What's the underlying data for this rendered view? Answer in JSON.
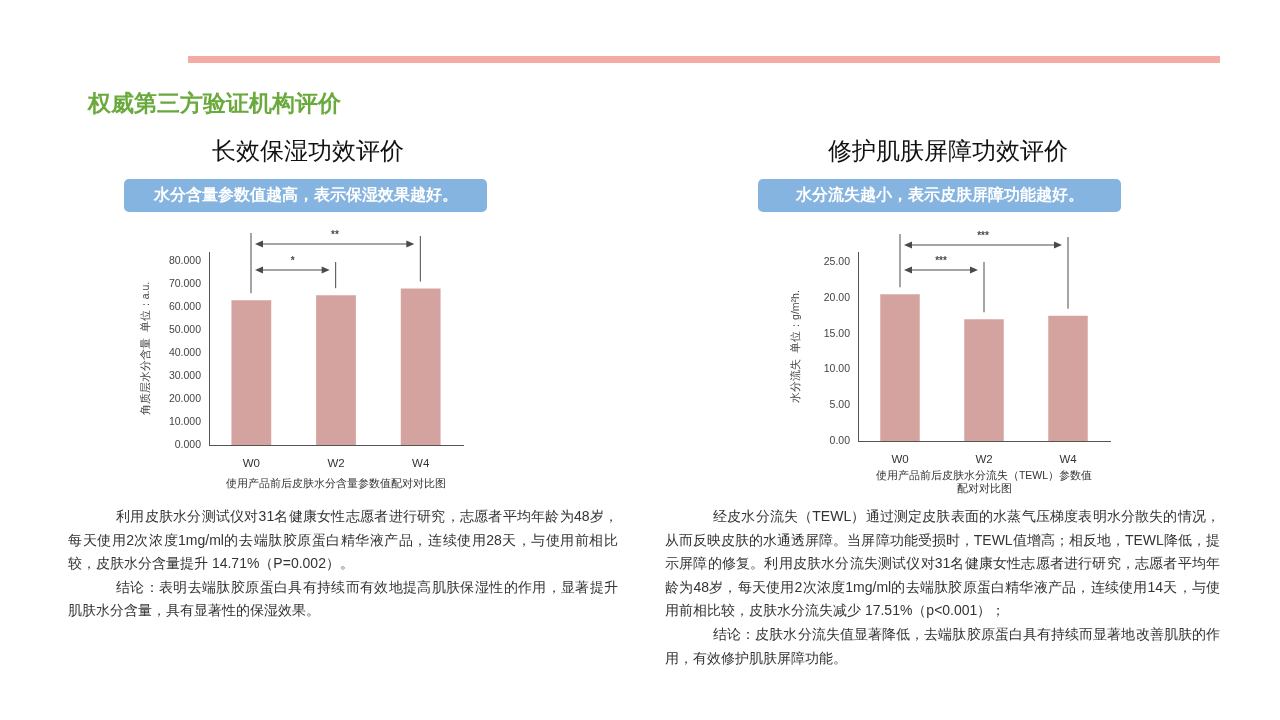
{
  "chart_data": [
    {
      "type": "bar",
      "title": "长效保湿功效评价",
      "subtitle": "水分含量参数值越高，表示保湿效果越好。",
      "xlabel": "使用产品前后皮肤水分含量参数值配对对比图",
      "ylabel": "角质层水分含量  单位：a.u.",
      "categories": [
        "W0",
        "W2",
        "W4"
      ],
      "values": [
        63.0,
        65.2,
        68.1
      ],
      "color": "#d4a39f",
      "ylim": [
        0,
        84
      ],
      "yticks": [
        {
          "value": 0,
          "label": "0.000"
        },
        {
          "value": 10,
          "label": "10.000"
        },
        {
          "value": 20,
          "label": "20.000"
        },
        {
          "value": 30,
          "label": "30.000"
        },
        {
          "value": 40,
          "label": "40.000"
        },
        {
          "value": 50,
          "label": "50.000"
        },
        {
          "value": 60,
          "label": "60.000"
        },
        {
          "value": 70,
          "label": "70.000"
        },
        {
          "value": 80,
          "label": "80.000"
        }
      ],
      "annotations": [
        "权威第三方验证机构评价",
        "*",
        "**",
        "利用皮肤水分测试仪对31名健康女性志愿者进行研究，志愿者平均年龄为48岁，每天使用2次浓度1mg/ml的去端肽胶原蛋白精华液产品，连续使用28天，与使用前相比较，皮肤水分含量提升 14.71%（P=0.002）。",
        "结论：表明去端肽胶原蛋白具有持续而有效地提高肌肤保湿性的作用，显著提升肌肤水分含量，具有显著性的保湿效果。"
      ]
    },
    {
      "type": "bar",
      "title": "修护肌肤屏障功效评价",
      "subtitle": "水分流失越小，表示皮肤屏障功能越好。",
      "xlabel": "使用产品前后皮肤水分流失（TEWL）参数值配对对比图",
      "ylabel": "水分流失  单位：g/m²h.",
      "categories": [
        "W0",
        "W2",
        "W4"
      ],
      "values": [
        20.5,
        17.0,
        17.5
      ],
      "color": "#d4a39f",
      "ylim": [
        0,
        26.4
      ],
      "yticks": [
        {
          "value": 0,
          "label": "0.00"
        },
        {
          "value": 5,
          "label": "5.00"
        },
        {
          "value": 10,
          "label": "10.00"
        },
        {
          "value": 15,
          "label": "15.00"
        },
        {
          "value": 20,
          "label": "20.00"
        },
        {
          "value": 25,
          "label": "25.00"
        }
      ],
      "annotations": [
        "***",
        "***",
        "经皮水分流失（TEWL）通过测定皮肤表面的水蒸气压梯度表明水分散失的情况，从而反映皮肤的水通透屏障。当屏障功能受损时，TEWL值增高；相反地，TEWL降低，提示屏障的修复。利用皮肤水分流失测试仪对31名健康女性志愿者进行研究，志愿者平均年龄为48岁，每天使用2次浓度1mg/ml的去端肽胶原蛋白精华液产品，连续使用14天，与使用前相比较，皮肤水分流失减少 17.51%（p<0.001）；",
        "结论：皮肤水分流失值显著降低，去端肽胶原蛋白具有持续而显著地改善肌肤的作用，有效修护肌肤屏障功能。"
      ]
    }
  ]
}
